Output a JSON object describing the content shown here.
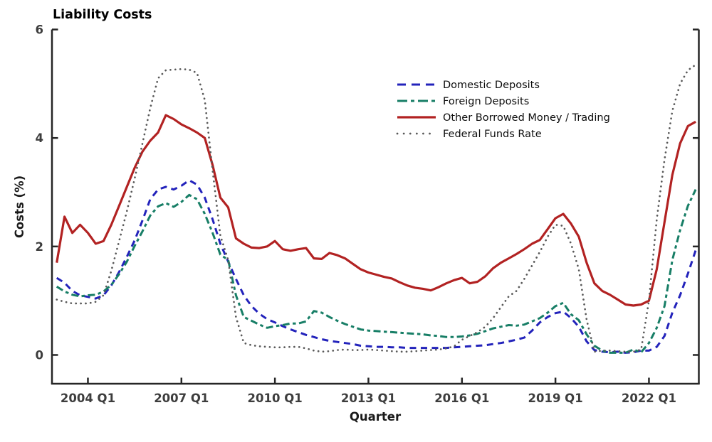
{
  "window": {
    "title": "Liability Costs"
  },
  "chart_data": {
    "type": "line",
    "title": "Liability Costs",
    "xlabel": "Quarter",
    "ylabel": "Costs (%)",
    "ylim": [
      -0.53,
      6.0
    ],
    "grid": false,
    "legend_position": "upper-right-inside",
    "axis_color": "#262626",
    "tick_label_color": "#3d3d3d",
    "yticks": [
      0,
      2,
      4,
      6
    ],
    "xticks": [
      {
        "label": "2004 Q1",
        "index": 4
      },
      {
        "label": "2007 Q1",
        "index": 16
      },
      {
        "label": "2010 Q1",
        "index": 28
      },
      {
        "label": "2013 Q1",
        "index": 40
      },
      {
        "label": "2016 Q1",
        "index": 52
      },
      {
        "label": "2019 Q1",
        "index": 64
      },
      {
        "label": "2022 Q1",
        "index": 76
      }
    ],
    "x_quarters": [
      "2003 Q1",
      "2003 Q2",
      "2003 Q3",
      "2003 Q4",
      "2004 Q1",
      "2004 Q2",
      "2004 Q3",
      "2004 Q4",
      "2005 Q1",
      "2005 Q2",
      "2005 Q3",
      "2005 Q4",
      "2006 Q1",
      "2006 Q2",
      "2006 Q3",
      "2006 Q4",
      "2007 Q1",
      "2007 Q2",
      "2007 Q3",
      "2007 Q4",
      "2008 Q1",
      "2008 Q2",
      "2008 Q3",
      "2008 Q4",
      "2009 Q1",
      "2009 Q2",
      "2009 Q3",
      "2009 Q4",
      "2010 Q1",
      "2010 Q2",
      "2010 Q3",
      "2010 Q4",
      "2011 Q1",
      "2011 Q2",
      "2011 Q3",
      "2011 Q4",
      "2012 Q1",
      "2012 Q2",
      "2012 Q3",
      "2012 Q4",
      "2013 Q1",
      "2013 Q2",
      "2013 Q3",
      "2013 Q4",
      "2014 Q1",
      "2014 Q2",
      "2014 Q3",
      "2014 Q4",
      "2015 Q1",
      "2015 Q2",
      "2015 Q3",
      "2015 Q4",
      "2016 Q1",
      "2016 Q2",
      "2016 Q3",
      "2016 Q4",
      "2017 Q1",
      "2017 Q2",
      "2017 Q3",
      "2017 Q4",
      "2018 Q1",
      "2018 Q2",
      "2018 Q3",
      "2018 Q4",
      "2019 Q1",
      "2019 Q2",
      "2019 Q3",
      "2019 Q4",
      "2020 Q1",
      "2020 Q2",
      "2020 Q3",
      "2020 Q4",
      "2021 Q1",
      "2021 Q2",
      "2021 Q3",
      "2021 Q4",
      "2022 Q1",
      "2022 Q2",
      "2022 Q3",
      "2022 Q4",
      "2023 Q1",
      "2023 Q2",
      "2023 Q3"
    ],
    "series": [
      {
        "name": "Domestic Deposits",
        "color": "#2323bb",
        "style": "dashed",
        "values": [
          1.42,
          1.33,
          1.18,
          1.1,
          1.07,
          1.04,
          1.1,
          1.28,
          1.53,
          1.81,
          2.11,
          2.48,
          2.87,
          3.05,
          3.1,
          3.05,
          3.12,
          3.22,
          3.14,
          2.9,
          2.5,
          2.05,
          1.72,
          1.4,
          1.1,
          0.9,
          0.76,
          0.66,
          0.6,
          0.53,
          0.47,
          0.42,
          0.37,
          0.33,
          0.29,
          0.26,
          0.24,
          0.22,
          0.2,
          0.17,
          0.16,
          0.15,
          0.15,
          0.14,
          0.14,
          0.13,
          0.13,
          0.13,
          0.13,
          0.13,
          0.13,
          0.14,
          0.15,
          0.16,
          0.17,
          0.18,
          0.2,
          0.22,
          0.25,
          0.28,
          0.32,
          0.45,
          0.6,
          0.7,
          0.77,
          0.8,
          0.68,
          0.52,
          0.25,
          0.09,
          0.06,
          0.05,
          0.06,
          0.04,
          0.05,
          0.08,
          0.08,
          0.15,
          0.35,
          0.78,
          1.1,
          1.5,
          1.93
        ]
      },
      {
        "name": "Foreign Deposits",
        "color": "#177e66",
        "style": "dashdot",
        "values": [
          1.26,
          1.17,
          1.11,
          1.08,
          1.1,
          1.11,
          1.17,
          1.29,
          1.49,
          1.72,
          2.01,
          2.28,
          2.57,
          2.74,
          2.8,
          2.73,
          2.82,
          2.95,
          2.87,
          2.6,
          2.25,
          1.85,
          1.75,
          1.1,
          0.7,
          0.63,
          0.56,
          0.5,
          0.53,
          0.55,
          0.58,
          0.58,
          0.62,
          0.81,
          0.78,
          0.7,
          0.63,
          0.57,
          0.52,
          0.47,
          0.45,
          0.44,
          0.43,
          0.42,
          0.41,
          0.4,
          0.39,
          0.38,
          0.36,
          0.35,
          0.33,
          0.33,
          0.34,
          0.36,
          0.39,
          0.44,
          0.49,
          0.52,
          0.55,
          0.54,
          0.56,
          0.62,
          0.68,
          0.78,
          0.9,
          0.96,
          0.75,
          0.64,
          0.38,
          0.17,
          0.08,
          0.04,
          0.04,
          0.04,
          0.1,
          0.05,
          0.22,
          0.5,
          0.9,
          1.75,
          2.3,
          2.75,
          3.05
        ]
      },
      {
        "name": "Other Borrowed Money / Trading",
        "color": "#b22222",
        "style": "solid",
        "values": [
          1.7,
          2.55,
          2.25,
          2.4,
          2.25,
          2.05,
          2.1,
          2.4,
          2.75,
          3.1,
          3.45,
          3.75,
          3.95,
          4.1,
          4.42,
          4.35,
          4.25,
          4.18,
          4.1,
          4.0,
          3.5,
          2.9,
          2.72,
          2.15,
          2.05,
          1.98,
          1.97,
          2.0,
          2.1,
          1.95,
          1.92,
          1.95,
          1.97,
          1.78,
          1.77,
          1.88,
          1.84,
          1.78,
          1.68,
          1.58,
          1.52,
          1.48,
          1.44,
          1.41,
          1.34,
          1.28,
          1.24,
          1.22,
          1.19,
          1.25,
          1.32,
          1.38,
          1.42,
          1.32,
          1.35,
          1.45,
          1.6,
          1.7,
          1.78,
          1.86,
          1.95,
          2.05,
          2.12,
          2.32,
          2.52,
          2.6,
          2.42,
          2.18,
          1.7,
          1.32,
          1.18,
          1.11,
          1.02,
          0.93,
          0.91,
          0.93,
          1.0,
          1.58,
          2.45,
          3.32,
          3.9,
          4.22,
          4.3
        ]
      },
      {
        "name": "Federal Funds Rate",
        "color": "#595959",
        "style": "dotted",
        "values": [
          1.02,
          0.98,
          0.95,
          0.95,
          0.95,
          0.98,
          1.1,
          1.55,
          2.1,
          2.65,
          3.25,
          3.9,
          4.55,
          5.1,
          5.25,
          5.26,
          5.27,
          5.26,
          5.2,
          4.7,
          3.4,
          2.2,
          1.75,
          0.7,
          0.22,
          0.18,
          0.16,
          0.15,
          0.14,
          0.14,
          0.15,
          0.15,
          0.12,
          0.08,
          0.06,
          0.07,
          0.09,
          0.1,
          0.09,
          0.09,
          0.1,
          0.09,
          0.08,
          0.07,
          0.06,
          0.06,
          0.07,
          0.08,
          0.09,
          0.1,
          0.12,
          0.16,
          0.28,
          0.35,
          0.42,
          0.52,
          0.68,
          0.88,
          1.08,
          1.18,
          1.4,
          1.65,
          1.9,
          2.18,
          2.4,
          2.38,
          2.05,
          1.58,
          0.65,
          0.06,
          0.08,
          0.08,
          0.07,
          0.06,
          0.06,
          0.1,
          1.0,
          2.5,
          3.6,
          4.5,
          5.0,
          5.25,
          5.35
        ]
      }
    ]
  }
}
